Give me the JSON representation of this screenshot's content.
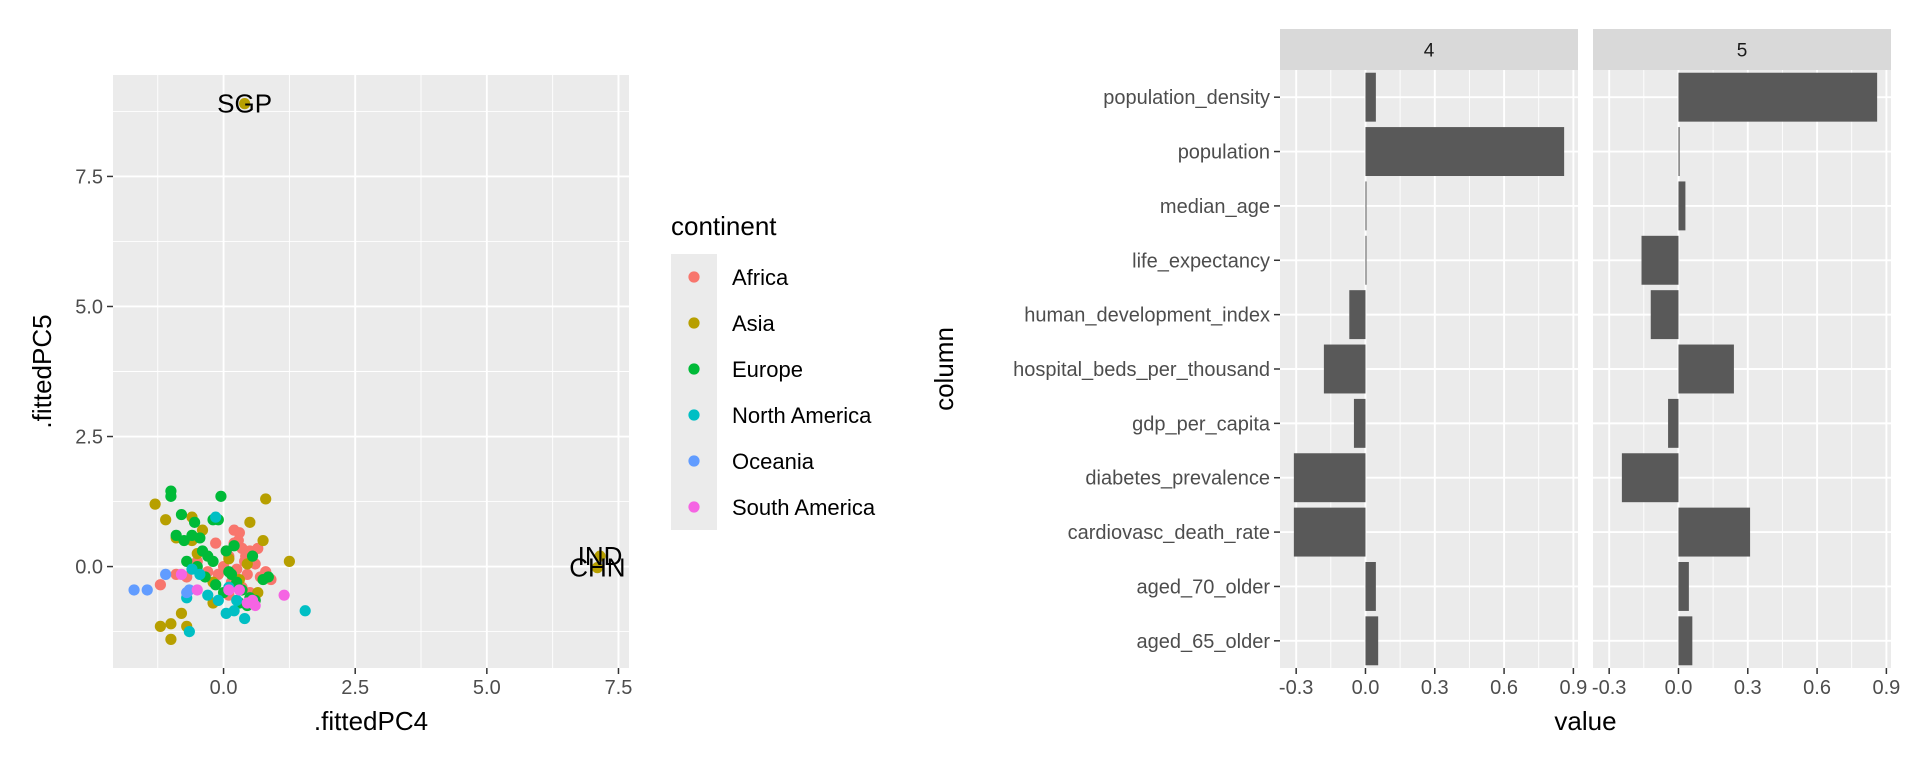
{
  "chart_data": [
    {
      "type": "scatter",
      "xlabel": ".fittedPC4",
      "ylabel": ".fittedPC5",
      "xlim": [
        -2.1,
        7.7
      ],
      "ylim": [
        -1.95,
        9.45
      ],
      "x_ticks": [
        0.0,
        2.5,
        5.0,
        7.5
      ],
      "x_tick_labels": [
        "0.0",
        "2.5",
        "5.0",
        "7.5"
      ],
      "y_ticks": [
        0.0,
        2.5,
        5.0,
        7.5
      ],
      "y_tick_labels": [
        "0.0",
        "2.5",
        "5.0",
        "7.5"
      ],
      "grid": true,
      "legend": {
        "title": "continent",
        "placement": "right",
        "entries": [
          {
            "name": "Africa",
            "color": "#F8766D"
          },
          {
            "name": "Asia",
            "color": "#B79F00"
          },
          {
            "name": "Europe",
            "color": "#00BA38"
          },
          {
            "name": "North America",
            "color": "#00BFC4"
          },
          {
            "name": "Oceania",
            "color": "#619CFF"
          },
          {
            "name": "South America",
            "color": "#F564E3"
          }
        ]
      },
      "labels": [
        {
          "text": "SGP",
          "x": 0.4,
          "y": 8.9
        },
        {
          "text": "IND",
          "x": 7.15,
          "y": 0.2
        },
        {
          "text": "CHN",
          "x": 7.1,
          "y": -0.02
        }
      ],
      "series": [
        {
          "name": "Africa",
          "color": "#F8766D",
          "points": [
            [
              0.2,
              0.45
            ],
            [
              0.35,
              0.35
            ],
            [
              0.5,
              0.3
            ],
            [
              0.1,
              0.2
            ],
            [
              0.4,
              0.1
            ],
            [
              0.6,
              0.05
            ],
            [
              0.25,
              -0.05
            ],
            [
              0.45,
              -0.15
            ],
            [
              0.7,
              -0.2
            ],
            [
              0.15,
              -0.3
            ],
            [
              0.3,
              0.65
            ],
            [
              0.55,
              0.25
            ],
            [
              0.0,
              0.0
            ],
            [
              -0.1,
              -0.15
            ],
            [
              0.8,
              -0.1
            ],
            [
              0.9,
              -0.25
            ],
            [
              -0.3,
              -0.1
            ],
            [
              -0.5,
              0.1
            ],
            [
              -0.7,
              -0.2
            ],
            [
              -1.2,
              -0.35
            ],
            [
              0.35,
              -0.4
            ],
            [
              0.5,
              -0.5
            ],
            [
              0.2,
              0.7
            ],
            [
              0.05,
              0.3
            ],
            [
              0.65,
              0.35
            ],
            [
              0.1,
              -0.55
            ],
            [
              -0.15,
              0.45
            ],
            [
              -0.9,
              -0.15
            ],
            [
              0.6,
              -0.65
            ],
            [
              0.28,
              0.5
            ],
            [
              0.42,
              0.2
            ]
          ]
        },
        {
          "name": "Asia",
          "color": "#B79F00",
          "points": [
            [
              0.4,
              8.9
            ],
            [
              7.15,
              0.2
            ],
            [
              7.1,
              -0.02
            ],
            [
              -1.3,
              1.2
            ],
            [
              -1.1,
              0.9
            ],
            [
              -0.9,
              0.55
            ],
            [
              -0.6,
              0.5
            ],
            [
              -0.4,
              0.7
            ],
            [
              -0.2,
              -0.7
            ],
            [
              0.5,
              0.85
            ],
            [
              0.8,
              1.3
            ],
            [
              0.75,
              0.5
            ],
            [
              0.65,
              -0.5
            ],
            [
              1.25,
              0.1
            ],
            [
              -0.5,
              0.25
            ],
            [
              -0.8,
              -0.9
            ],
            [
              -1.2,
              -1.15
            ],
            [
              -1.0,
              -1.4
            ],
            [
              -0.7,
              -1.15
            ],
            [
              -1.0,
              -1.1
            ],
            [
              -0.2,
              -0.3
            ],
            [
              0.1,
              0.15
            ],
            [
              -0.6,
              0.95
            ],
            [
              0.45,
              0.05
            ],
            [
              0.3,
              -0.25
            ]
          ]
        },
        {
          "name": "Europe",
          "color": "#00BA38",
          "points": [
            [
              -1.0,
              1.45
            ],
            [
              -1.0,
              1.35
            ],
            [
              -0.05,
              1.35
            ],
            [
              -0.8,
              1.0
            ],
            [
              -0.55,
              0.85
            ],
            [
              -0.2,
              0.9
            ],
            [
              -0.1,
              0.9
            ],
            [
              -0.9,
              0.6
            ],
            [
              -0.75,
              0.5
            ],
            [
              -0.6,
              0.6
            ],
            [
              -0.4,
              0.3
            ],
            [
              -0.3,
              0.2
            ],
            [
              -0.2,
              0.1
            ],
            [
              -0.7,
              0.1
            ],
            [
              -0.5,
              0.0
            ],
            [
              0.05,
              0.3
            ],
            [
              0.15,
              -0.15
            ],
            [
              0.25,
              -0.3
            ],
            [
              0.35,
              -0.45
            ],
            [
              0.5,
              -0.6
            ],
            [
              0.6,
              -0.65
            ],
            [
              0.75,
              -0.25
            ],
            [
              0.85,
              -0.2
            ],
            [
              -0.35,
              -0.2
            ],
            [
              -0.15,
              -0.35
            ],
            [
              0.0,
              -0.5
            ],
            [
              0.3,
              -0.7
            ],
            [
              0.45,
              -0.75
            ],
            [
              0.2,
              0.4
            ],
            [
              -0.45,
              0.55
            ],
            [
              0.1,
              -0.1
            ],
            [
              0.55,
              0.2
            ]
          ]
        },
        {
          "name": "North America",
          "color": "#00BFC4",
          "points": [
            [
              1.55,
              -0.85
            ],
            [
              0.4,
              -1.0
            ],
            [
              0.2,
              -0.85
            ],
            [
              0.05,
              -0.9
            ],
            [
              -0.1,
              -0.65
            ],
            [
              -0.3,
              -0.55
            ],
            [
              -0.7,
              -0.6
            ],
            [
              -0.65,
              -1.25
            ],
            [
              -0.15,
              0.95
            ],
            [
              0.25,
              -0.65
            ],
            [
              -0.45,
              -0.15
            ],
            [
              -0.6,
              -0.05
            ],
            [
              0.1,
              -0.4
            ]
          ]
        },
        {
          "name": "Oceania",
          "color": "#619CFF",
          "points": [
            [
              -1.7,
              -0.45
            ],
            [
              -1.45,
              -0.45
            ],
            [
              -1.1,
              -0.15
            ],
            [
              -0.7,
              -0.5
            ],
            [
              -0.65,
              -0.45
            ]
          ]
        },
        {
          "name": "South America",
          "color": "#F564E3",
          "points": [
            [
              1.15,
              -0.55
            ],
            [
              0.6,
              -0.75
            ],
            [
              0.45,
              -0.7
            ],
            [
              0.3,
              -0.45
            ],
            [
              0.1,
              -0.45
            ],
            [
              -0.5,
              -0.45
            ],
            [
              -0.8,
              -0.15
            ],
            [
              0.55,
              -0.65
            ]
          ]
        }
      ]
    },
    {
      "type": "bar",
      "orientation": "horizontal",
      "facets": [
        "4",
        "5"
      ],
      "xlabel": "value",
      "ylabel": "column",
      "xlim": [
        -0.37,
        0.92
      ],
      "x_ticks": [
        -0.3,
        0.0,
        0.3,
        0.6,
        0.9
      ],
      "x_tick_labels": [
        "-0.3",
        "0.0",
        "0.3",
        "0.6",
        "0.9"
      ],
      "grid": true,
      "bar_color": "#595959",
      "categories": [
        "population_density",
        "population",
        "median_age",
        "life_expectancy",
        "human_development_index",
        "hospital_beds_per_thousand",
        "gdp_per_capita",
        "diabetes_prevalence",
        "cardiovasc_death_rate",
        "aged_70_older",
        "aged_65_older"
      ],
      "series": [
        {
          "name": "4",
          "values": [
            0.045,
            0.86,
            0.0,
            0.0,
            -0.07,
            -0.18,
            -0.05,
            -0.31,
            -0.31,
            0.045,
            0.055
          ]
        },
        {
          "name": "5",
          "values": [
            0.86,
            0.005,
            0.03,
            -0.16,
            -0.12,
            0.24,
            -0.045,
            -0.245,
            0.31,
            0.045,
            0.06
          ]
        }
      ]
    }
  ]
}
